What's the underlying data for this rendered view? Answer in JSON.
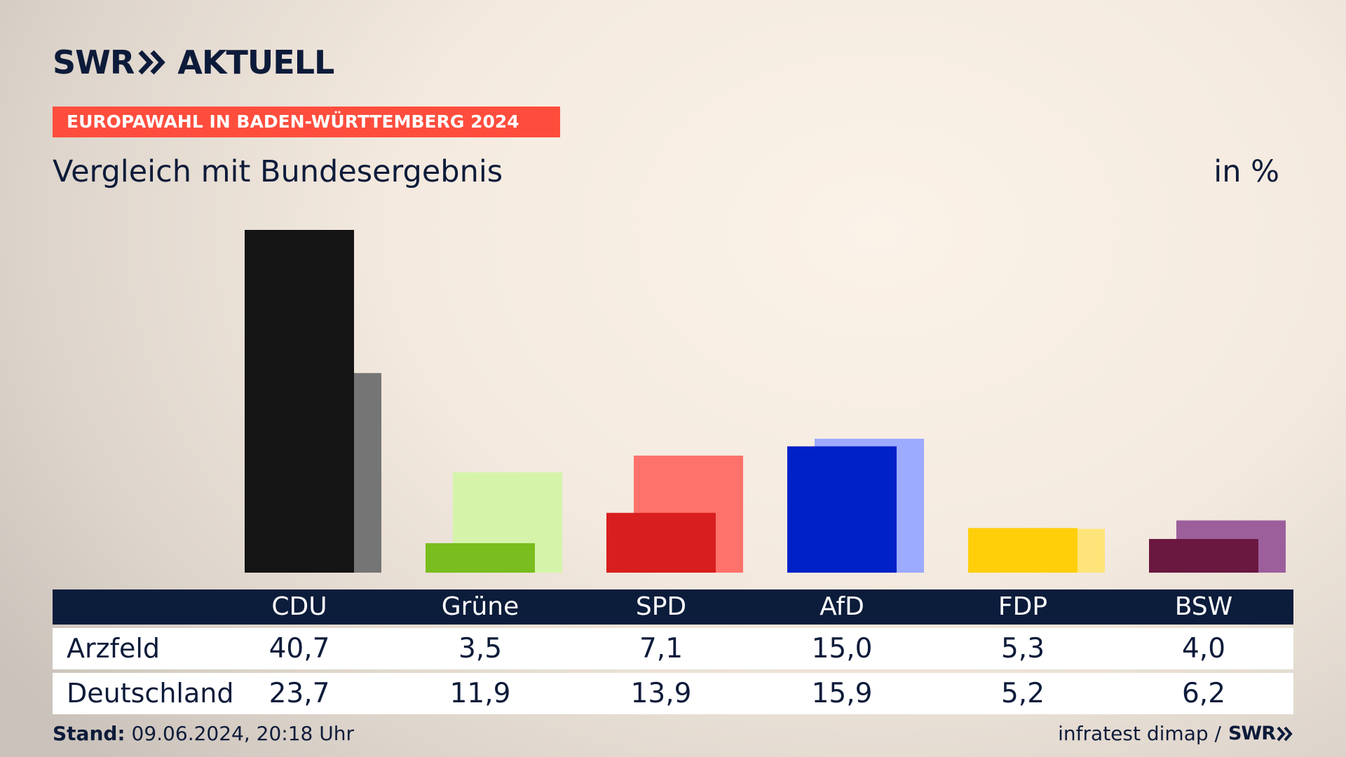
{
  "header": {
    "logo_text_1": "SWR",
    "logo_text_2": "AKTUELL",
    "tag": "EUROPAWAHL IN BADEN-WÜRTTEMBERG 2024",
    "subtitle": "Vergleich mit Bundesergebnis",
    "unit": "in %"
  },
  "colors": {
    "navy": "#0c1c3b",
    "tag_red": "#ff4d3d"
  },
  "chart_data": {
    "type": "bar",
    "categories": [
      "CDU",
      "Grüne",
      "SPD",
      "AfD",
      "FDP",
      "BSW"
    ],
    "series": [
      {
        "name": "Arzfeld",
        "values": [
          40.7,
          3.5,
          7.1,
          15.0,
          5.3,
          4.0
        ],
        "colors": [
          "#141414",
          "#7abd1e",
          "#d81e1e",
          "#0021c8",
          "#ffcf0a",
          "#6a1840"
        ]
      },
      {
        "name": "Deutschland",
        "values": [
          23.7,
          11.9,
          13.9,
          15.9,
          5.2,
          6.2
        ],
        "colors": [
          "#757575",
          "#d5f4aa",
          "#ff726c",
          "#9caaff",
          "#ffe479",
          "#9c5f9c"
        ]
      }
    ],
    "ylim": [
      0,
      40.7
    ],
    "grid": false,
    "value_labels": {
      "Arzfeld": [
        "40,7",
        "3,5",
        "7,1",
        "15,0",
        "5,3",
        "4,0"
      ],
      "Deutschland": [
        "23,7",
        "11,9",
        "13,9",
        "15,9",
        "5,2",
        "6,2"
      ]
    }
  },
  "footer": {
    "stand_label": "Stand:",
    "stand_value": "09.06.2024, 20:18 Uhr",
    "source": "infratest dimap /",
    "source_logo": "SWR"
  }
}
